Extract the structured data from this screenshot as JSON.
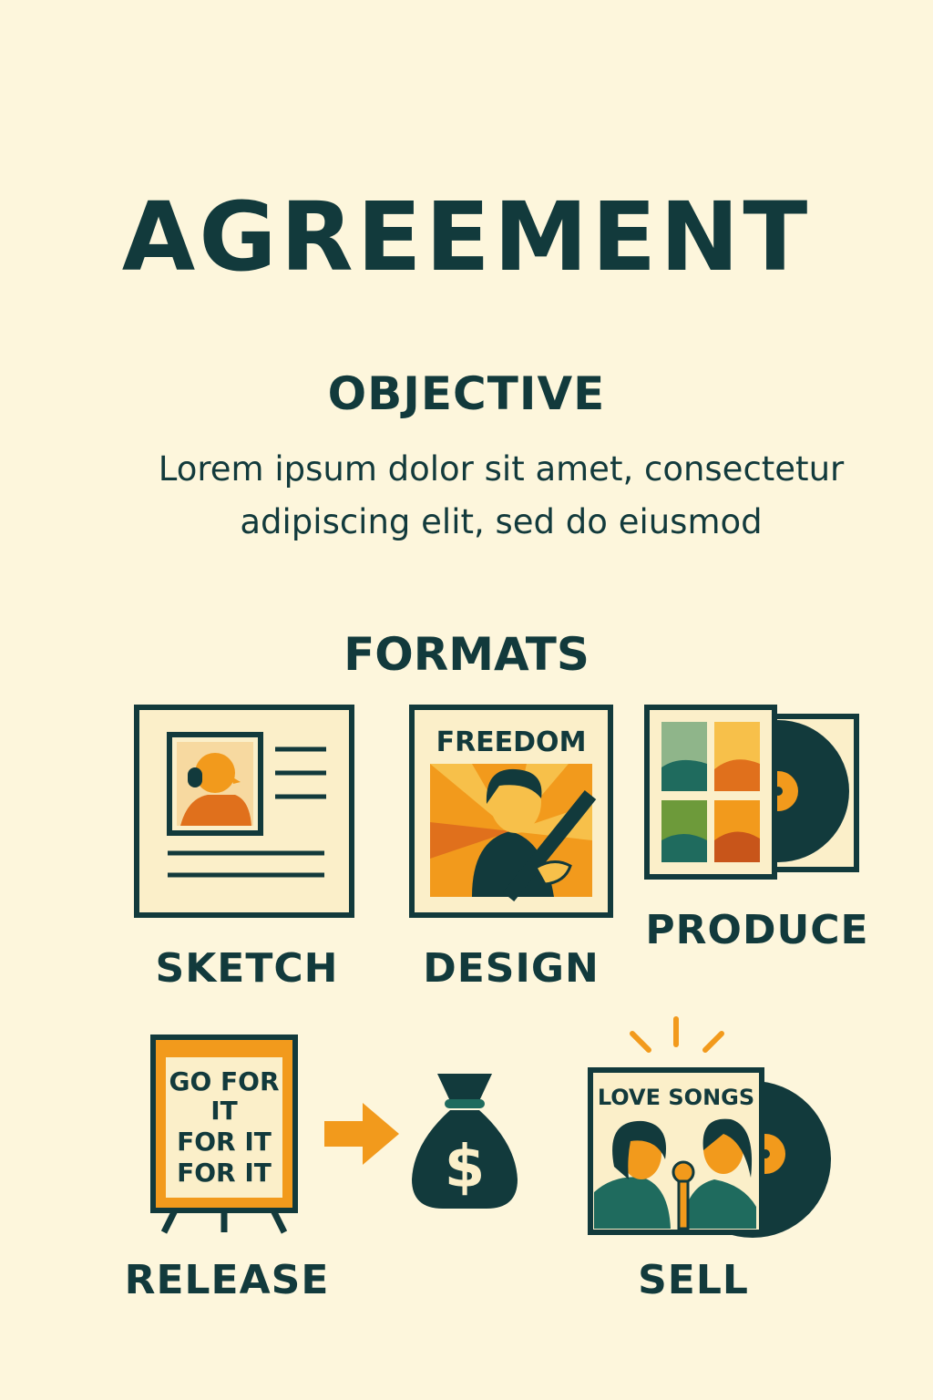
{
  "header": {
    "title": "AGREEMENT"
  },
  "objective": {
    "heading": "OBJECTIVE",
    "line1": "Lorem ipsum dolor sit amet, consectetur",
    "line2": "adipiscing elit, sed do eiusmod"
  },
  "formats": {
    "heading": "FORMATS",
    "steps": {
      "sketch": "SKETCH",
      "design": "DESIGN",
      "produce": "PRODUCE",
      "release": "RELEASE",
      "sell": "SELL"
    },
    "artwork": {
      "design_poster_text": "FREEDOM",
      "release_sign_line1": "GO FOR",
      "release_sign_line2": "IT",
      "release_sign_line3": "FOR IT",
      "release_sign_line4": "FOR IT",
      "money_symbol": "$",
      "sell_album_text": "LOVE SONGS"
    },
    "icons": [
      "sketch-card-icon",
      "freedom-poster-icon",
      "album-vinyl-icon",
      "sign-board-icon",
      "arrow-right-icon",
      "money-bag-icon",
      "love-songs-album-icon"
    ]
  },
  "colors": {
    "background": "#fdf6dc",
    "ink": "#123a3c",
    "orange": "#f29a1c",
    "dark_orange": "#e0701c",
    "teal": "#1f6b5e",
    "cream": "#fbefc9"
  }
}
